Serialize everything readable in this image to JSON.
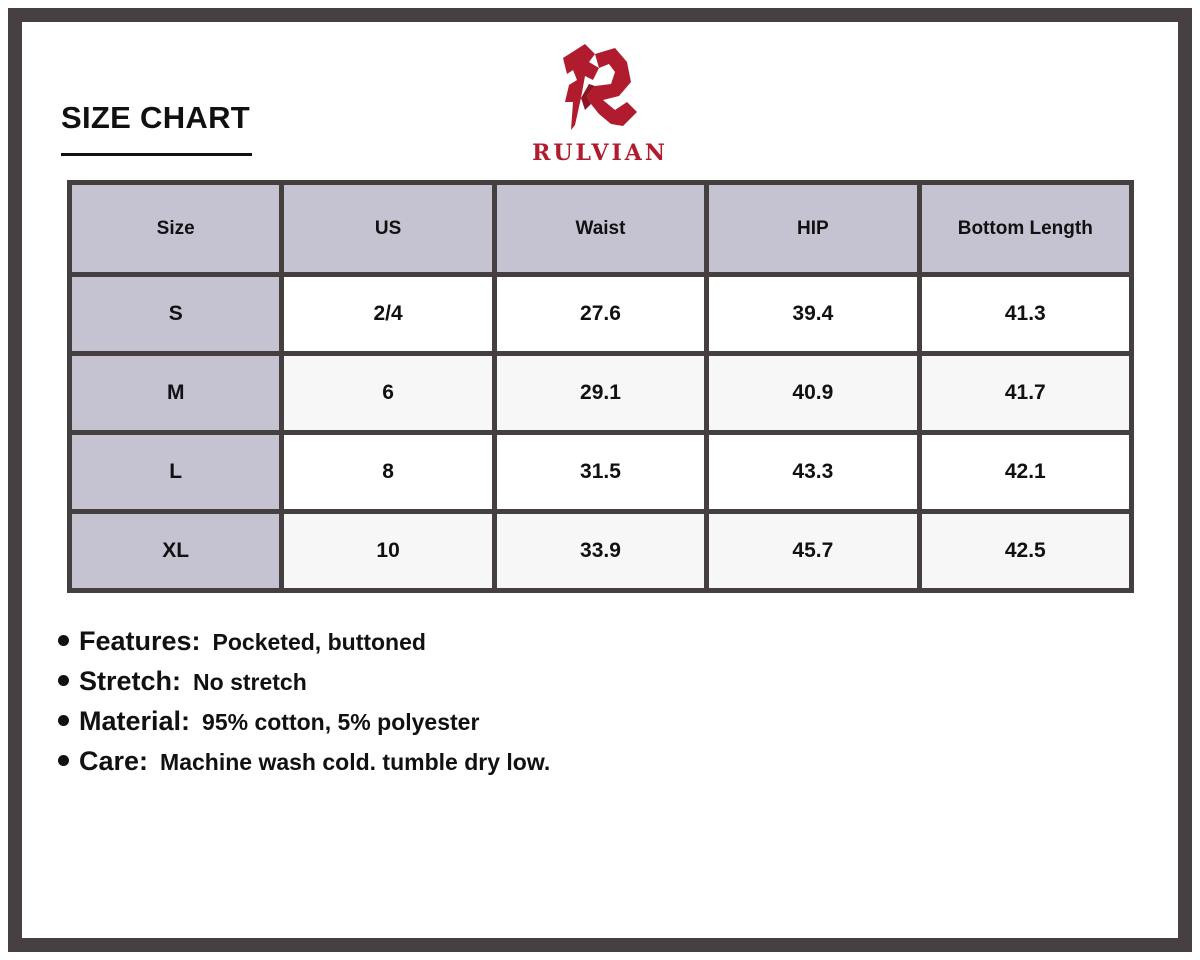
{
  "title": "SIZE CHART",
  "logo": {
    "text": "RULVIAN",
    "color": "#b01b2e"
  },
  "table": {
    "headers": [
      "Size",
      "US",
      "Waist",
      "HIP",
      "Bottom Length"
    ],
    "rows": [
      [
        "S",
        "2/4",
        "27.6",
        "39.4",
        "41.3"
      ],
      [
        "M",
        "6",
        "29.1",
        "40.9",
        "41.7"
      ],
      [
        "L",
        "8",
        "31.5",
        "43.3",
        "42.1"
      ],
      [
        "XL",
        "10",
        "33.9",
        "45.7",
        "42.5"
      ]
    ]
  },
  "features": [
    {
      "label": "Features:",
      "value": "Pocketed, buttoned"
    },
    {
      "label": "Stretch:",
      "value": "No stretch"
    },
    {
      "label": "Material:",
      "value": "95% cotton, 5% polyester"
    },
    {
      "label": "Care:",
      "value": "Machine wash cold. tumble dry low."
    }
  ]
}
